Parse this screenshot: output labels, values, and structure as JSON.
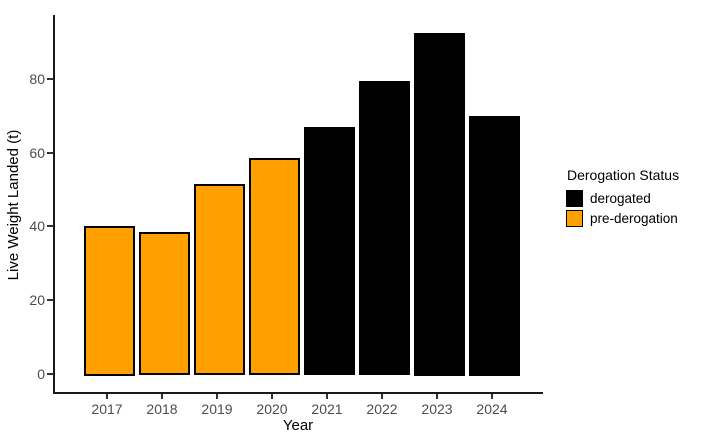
{
  "chart_data": {
    "type": "bar",
    "title": "",
    "xlabel": "Year",
    "ylabel": "Live Weight Landed (t)",
    "categories": [
      "2017",
      "2018",
      "2019",
      "2020",
      "2021",
      "2022",
      "2023",
      "2024"
    ],
    "values": [
      40,
      38.5,
      51.5,
      58.5,
      67,
      79.5,
      92.5,
      70
    ],
    "groups": [
      "pre-derogation",
      "pre-derogation",
      "pre-derogation",
      "pre-derogation",
      "derogated",
      "derogated",
      "derogated",
      "derogated"
    ],
    "group_colors": {
      "derogated": "#000000",
      "pre-derogation": "#FF9F00"
    },
    "bar_border_color": "#000000",
    "y_ticks": [
      0,
      20,
      40,
      60,
      80
    ],
    "ylim": [
      0,
      97
    ],
    "grid": false,
    "legend": {
      "position": "right",
      "title": "Derogation Status",
      "entries": [
        {
          "label": "derogated",
          "color": "#000000"
        },
        {
          "label": "pre-derogation",
          "color": "#FF9F00"
        }
      ]
    }
  }
}
